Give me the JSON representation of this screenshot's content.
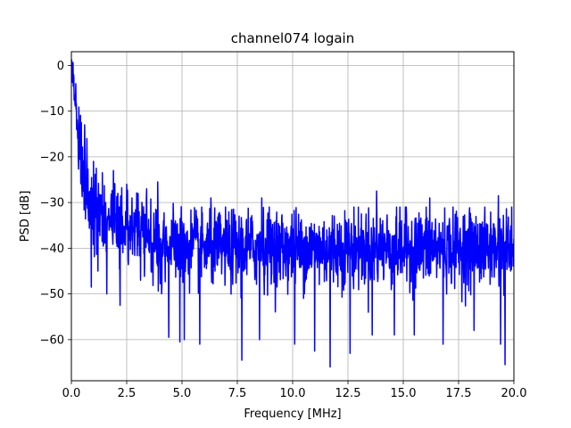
{
  "chart_data": {
    "type": "line",
    "title": "channel074 logain",
    "xlabel": "Frequency [MHz]",
    "ylabel": "PSD [dB]",
    "xlim": [
      0,
      20
    ],
    "ylim": [
      -69,
      3
    ],
    "x_ticks": [
      0,
      2.5,
      5,
      7.5,
      10,
      12.5,
      15,
      17.5,
      20
    ],
    "x_tick_labels": [
      "0.0",
      "2.5",
      "5.0",
      "7.5",
      "10.0",
      "12.5",
      "15.0",
      "17.5",
      "20.0"
    ],
    "y_ticks": [
      0,
      -10,
      -20,
      -30,
      -40,
      -50,
      -60
    ],
    "y_tick_labels": [
      "0",
      "−10",
      "−20",
      "−30",
      "−40",
      "−50",
      "−60"
    ],
    "grid": true,
    "series": [
      {
        "color": "#0000ff",
        "envelope_x": [
          0,
          0.1,
          0.2,
          0.35,
          0.5,
          0.75,
          1.0,
          1.5,
          2.0,
          2.5,
          3.0,
          3.5,
          4.0,
          4.5,
          5.0,
          6.0,
          8.0,
          10.0,
          13.0,
          15.0,
          17.5,
          20.0
        ],
        "envelope_mean": [
          0,
          -4,
          -9,
          -17,
          -24,
          -29,
          -31,
          -33,
          -35,
          -36,
          -37,
          -38,
          -38.5,
          -39,
          -40,
          -40,
          -40,
          -40,
          -40,
          -40,
          -40,
          -40
        ],
        "noise_std": 4.2,
        "n_points": 1600,
        "dips": [
          {
            "x": 0.9,
            "y": -48.5
          },
          {
            "x": 1.2,
            "y": -45
          },
          {
            "x": 1.6,
            "y": -50
          },
          {
            "x": 2.2,
            "y": -52.5
          },
          {
            "x": 3.4,
            "y": -59
          },
          {
            "x": 4.4,
            "y": -59.5
          },
          {
            "x": 4.9,
            "y": -60.5
          },
          {
            "x": 5.1,
            "y": -60
          },
          {
            "x": 5.8,
            "y": -61
          },
          {
            "x": 7.7,
            "y": -64.5
          },
          {
            "x": 8.5,
            "y": -60
          },
          {
            "x": 10.1,
            "y": -61
          },
          {
            "x": 11.0,
            "y": -62.5
          },
          {
            "x": 11.7,
            "y": -66
          },
          {
            "x": 12.6,
            "y": -63
          },
          {
            "x": 13.6,
            "y": -59
          },
          {
            "x": 14.6,
            "y": -59
          },
          {
            "x": 15.5,
            "y": -59
          },
          {
            "x": 16.8,
            "y": -61
          },
          {
            "x": 18.2,
            "y": -58
          },
          {
            "x": 19.4,
            "y": -61
          },
          {
            "x": 19.6,
            "y": -65.5
          },
          {
            "x": 19.9,
            "y": -53
          }
        ],
        "peaks": [
          {
            "x": 0.02,
            "y": 0
          },
          {
            "x": 0.1,
            "y": -2
          },
          {
            "x": 0.2,
            "y": -4
          },
          {
            "x": 0.45,
            "y": -12.5
          },
          {
            "x": 0.6,
            "y": -13
          },
          {
            "x": 0.7,
            "y": -16
          },
          {
            "x": 1.0,
            "y": -21
          },
          {
            "x": 1.4,
            "y": -23.5
          },
          {
            "x": 1.9,
            "y": -23
          },
          {
            "x": 2.5,
            "y": -26
          },
          {
            "x": 3.4,
            "y": -27
          },
          {
            "x": 3.9,
            "y": -25.5
          },
          {
            "x": 6.3,
            "y": -29
          },
          {
            "x": 8.6,
            "y": -29
          },
          {
            "x": 13.8,
            "y": -27.5
          },
          {
            "x": 16.2,
            "y": -29
          },
          {
            "x": 19.3,
            "y": -28.5
          },
          {
            "x": 19.9,
            "y": -31
          }
        ]
      }
    ]
  }
}
